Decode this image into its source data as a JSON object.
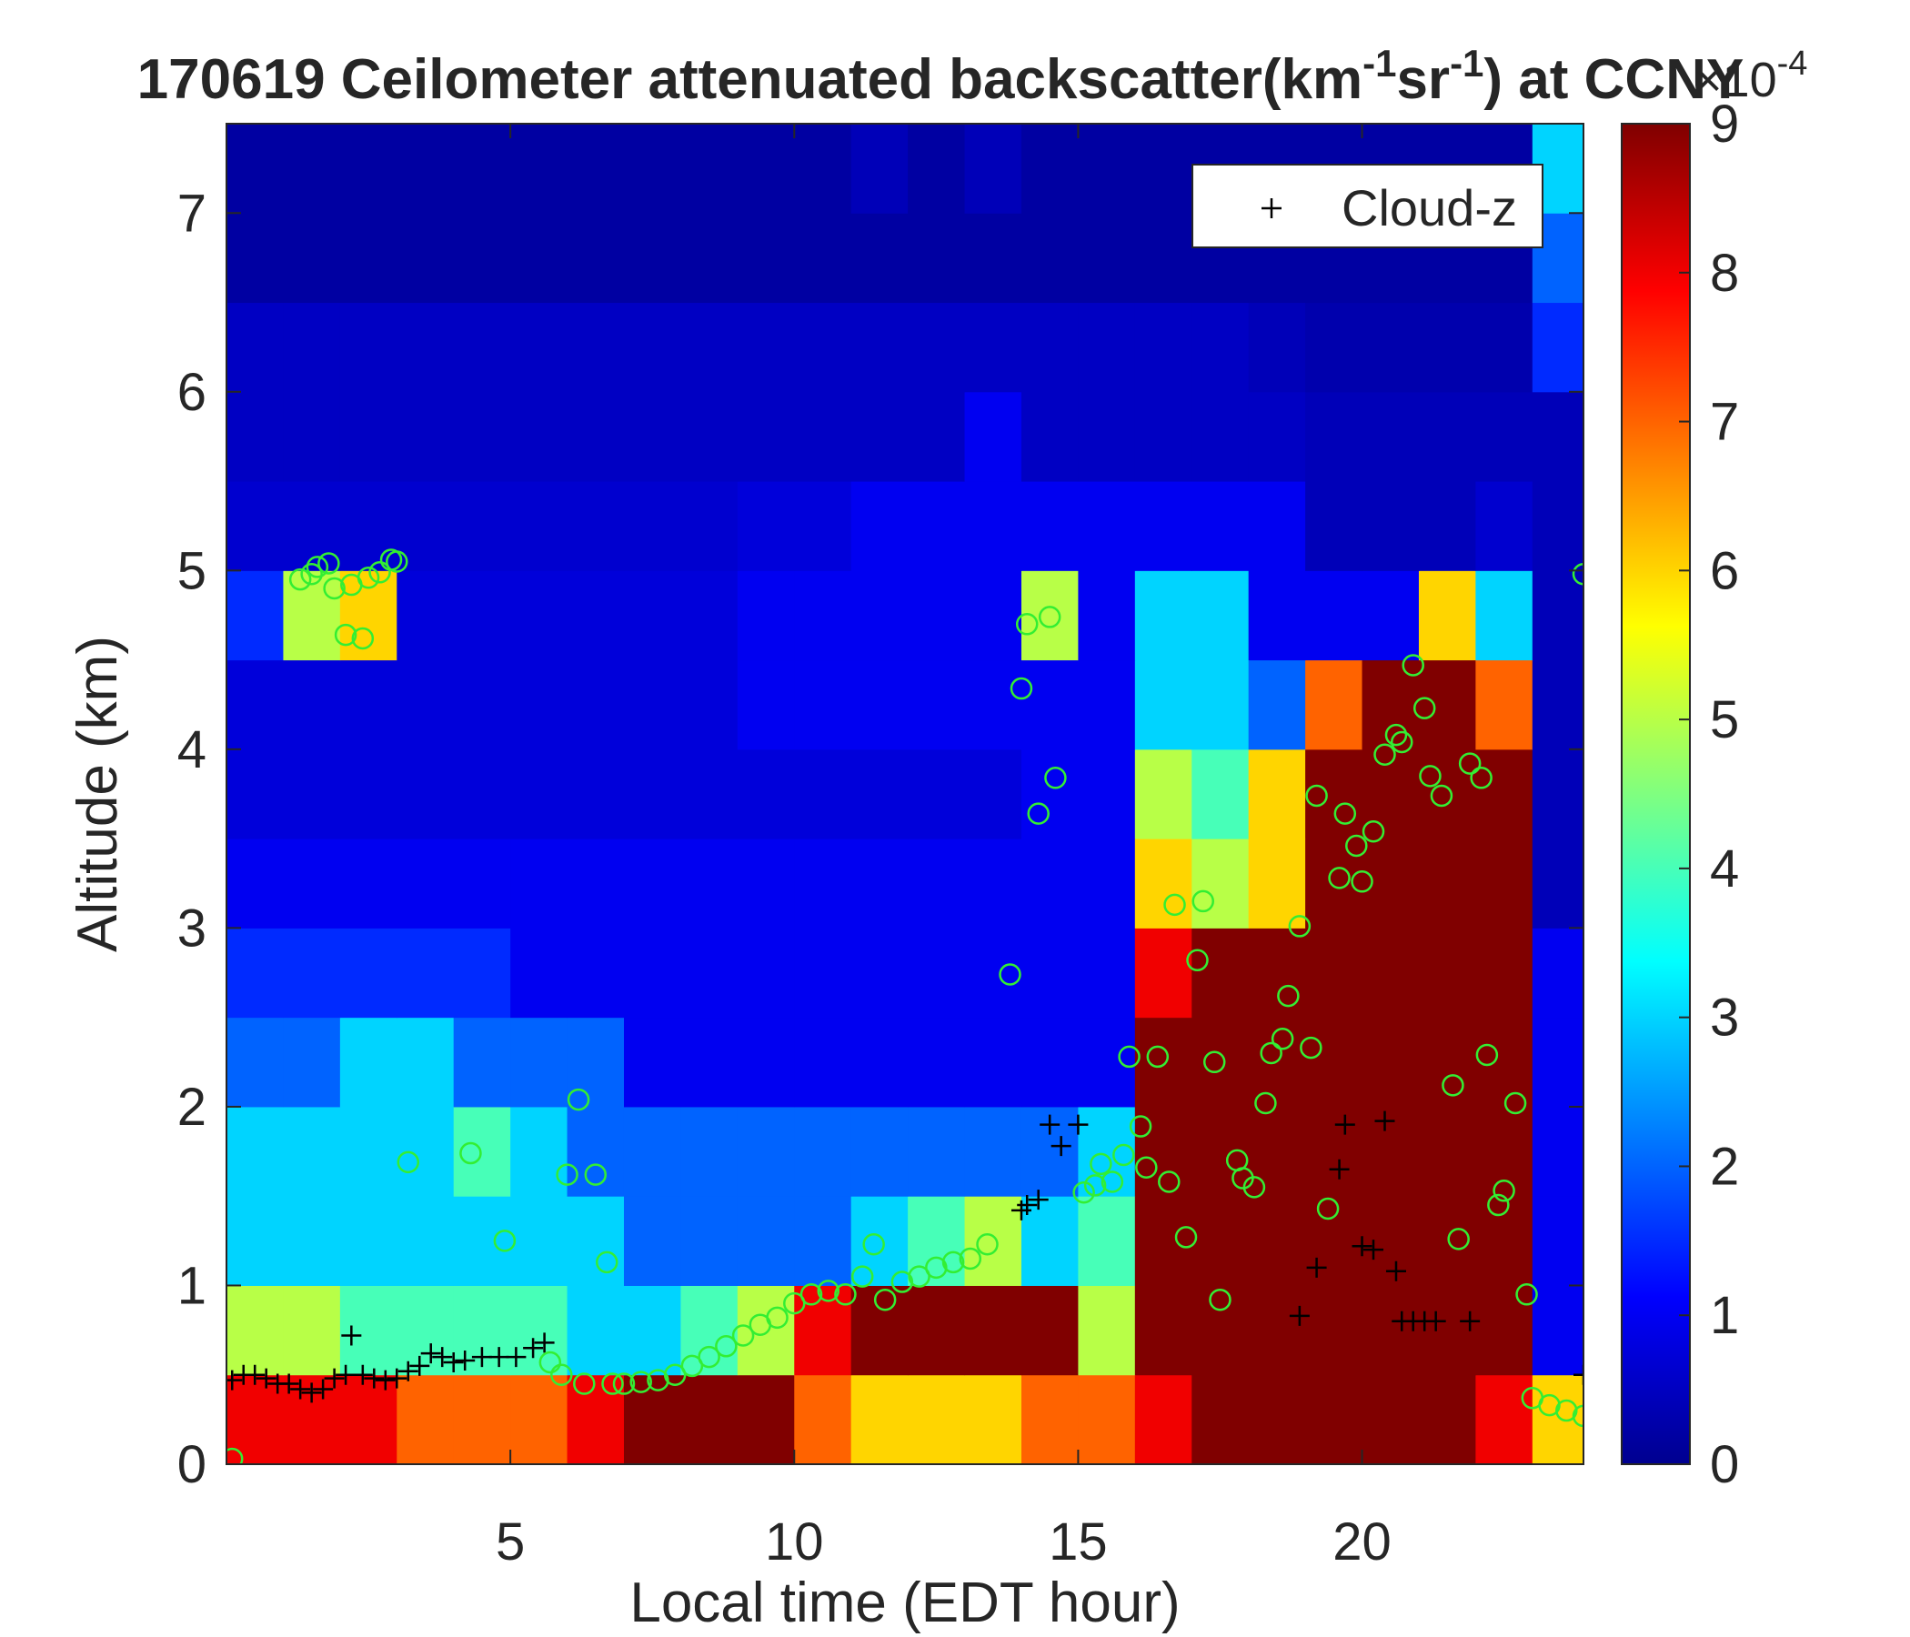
{
  "chart_data": {
    "type": "heatmap",
    "title": [
      "170619 Ceilometer attenuated backscatter(km",
      "-1",
      "sr",
      "-1",
      ") at CCNY"
    ],
    "xlabel": "Local time (EDT hour)",
    "ylabel": "Altitude (km)",
    "xlim": [
      0,
      23.9
    ],
    "ylim": [
      0,
      7.5
    ],
    "xticks": [
      5,
      10,
      15,
      20
    ],
    "yticks": [
      0,
      1,
      2,
      3,
      4,
      5,
      6,
      7
    ],
    "colormap": "jet",
    "clim": [
      0,
      9
    ],
    "cticks": [
      0,
      1,
      2,
      3,
      4,
      5,
      6,
      7,
      8,
      9
    ],
    "color_exponent": [
      "×10",
      "-4"
    ],
    "legend": "upper right",
    "xbins": [
      0,
      1,
      2,
      3,
      4,
      5,
      6,
      7,
      8,
      9,
      10,
      11,
      12,
      13,
      14,
      15,
      16,
      17,
      18,
      19,
      20,
      21,
      22,
      23,
      23.9
    ],
    "ybins": [
      0,
      0.5,
      1,
      1.5,
      2,
      2.5,
      3,
      3.5,
      4,
      4.5,
      5,
      5.5,
      6,
      6.5,
      7,
      7.5
    ],
    "z": [
      [
        8,
        8,
        8,
        7,
        7,
        7,
        8,
        9,
        9,
        9,
        7,
        6,
        6,
        6,
        7,
        7,
        8,
        9,
        9,
        9,
        9,
        9,
        8,
        6
      ],
      [
        5,
        5,
        4,
        4,
        4,
        4,
        3,
        3,
        4,
        5,
        8,
        9,
        9,
        9,
        9,
        5,
        9,
        9,
        9,
        9,
        9,
        9,
        9,
        1
      ],
      [
        3,
        3,
        3,
        3,
        3,
        3,
        3,
        2,
        2,
        2,
        2,
        3,
        4,
        5,
        3,
        4,
        9,
        9,
        9,
        9,
        9,
        9,
        9,
        1
      ],
      [
        3,
        3,
        3,
        3,
        4,
        3,
        2,
        2,
        2,
        2,
        2,
        2,
        2,
        2,
        2,
        3,
        9,
        9,
        9,
        9,
        9,
        9,
        9,
        1
      ],
      [
        2,
        2,
        3,
        3,
        2,
        2,
        2,
        1,
        1,
        1,
        1,
        1,
        1,
        1,
        1,
        1,
        9,
        9,
        9,
        9,
        9,
        9,
        9,
        1
      ],
      [
        1.5,
        1.5,
        1.5,
        1.5,
        1.5,
        1,
        1,
        1,
        1,
        1,
        1,
        1,
        1,
        1,
        1,
        1,
        8,
        9,
        9,
        9,
        9,
        9,
        9,
        1
      ],
      [
        1,
        1,
        1,
        1,
        1,
        1,
        1,
        1,
        1,
        1,
        1,
        1,
        1,
        1,
        1,
        1,
        6,
        5,
        6,
        9,
        9,
        9,
        9,
        0.5
      ],
      [
        0.8,
        0.8,
        0.8,
        0.8,
        0.8,
        0.8,
        0.8,
        0.8,
        0.8,
        0.8,
        0.8,
        0.8,
        0.8,
        0.8,
        1,
        1,
        5,
        4,
        6,
        9,
        9,
        9,
        9,
        0.5
      ],
      [
        0.8,
        0.8,
        0.8,
        0.8,
        0.8,
        0.8,
        0.8,
        0.8,
        0.8,
        1,
        1,
        1,
        1,
        1,
        1,
        1,
        3,
        3,
        2,
        7,
        9,
        9,
        7,
        0.5
      ],
      [
        1.5,
        5,
        6,
        0.8,
        0.8,
        0.8,
        0.8,
        0.8,
        0.8,
        1,
        1,
        1,
        1,
        1,
        5,
        1,
        3,
        3,
        1,
        1,
        1,
        6,
        3,
        0.5
      ],
      [
        0.7,
        0.7,
        0.7,
        0.7,
        0.7,
        0.7,
        0.7,
        0.7,
        0.7,
        0.8,
        0.8,
        1,
        1,
        1,
        1,
        1,
        1,
        1,
        1,
        0.5,
        0.5,
        0.5,
        0.7,
        0.5
      ],
      [
        0.6,
        0.6,
        0.6,
        0.6,
        0.6,
        0.6,
        0.6,
        0.6,
        0.6,
        0.6,
        0.6,
        0.6,
        0.6,
        1,
        0.6,
        0.6,
        0.6,
        0.6,
        0.6,
        0.5,
        0.5,
        0.5,
        0.5,
        0.5
      ],
      [
        0.6,
        0.6,
        0.6,
        0.6,
        0.6,
        0.6,
        0.6,
        0.6,
        0.6,
        0.6,
        0.6,
        0.6,
        0.6,
        0.6,
        0.6,
        0.6,
        0.6,
        0.6,
        0.5,
        0.4,
        0.4,
        0.4,
        0.4,
        1.5
      ],
      [
        0.3,
        0.3,
        0.3,
        0.3,
        0.3,
        0.3,
        0.3,
        0.3,
        0.3,
        0.3,
        0.3,
        0.3,
        0.3,
        0.3,
        0.3,
        0.3,
        0.3,
        0.3,
        0.3,
        0.3,
        0.3,
        0.3,
        0.3,
        2
      ],
      [
        0.3,
        0.3,
        0.3,
        0.3,
        0.3,
        0.3,
        0.3,
        0.3,
        0.3,
        0.3,
        0.3,
        0.5,
        0.3,
        0.5,
        0.3,
        0.3,
        0.3,
        0.3,
        0.3,
        0.3,
        0.3,
        0.3,
        0.3,
        3
      ]
    ],
    "series": [
      {
        "name": "Cloud-z",
        "marker": "+",
        "color": "#000000",
        "x": [
          0.1,
          0.3,
          0.5,
          0.7,
          0.9,
          1.1,
          1.3,
          1.5,
          1.7,
          1.9,
          2.1,
          2.2,
          2.4,
          2.6,
          2.8,
          3.0,
          3.2,
          3.4,
          3.6,
          3.8,
          4.0,
          4.2,
          4.5,
          4.8,
          5.1,
          5.4,
          5.6,
          14.0,
          14.1,
          14.3,
          14.5,
          14.7,
          15.0,
          18.9,
          19.2,
          19.6,
          19.7,
          20.0,
          20.2,
          20.4,
          20.6,
          20.7,
          20.9,
          21.1,
          21.3,
          21.9,
          23.9
        ],
        "y": [
          0.47,
          0.5,
          0.5,
          0.48,
          0.45,
          0.45,
          0.42,
          0.4,
          0.42,
          0.48,
          0.5,
          0.72,
          0.5,
          0.48,
          0.47,
          0.48,
          0.52,
          0.55,
          0.62,
          0.6,
          0.57,
          0.58,
          0.6,
          0.6,
          0.6,
          0.65,
          0.68,
          1.42,
          1.45,
          1.48,
          1.9,
          1.78,
          1.9,
          0.83,
          1.1,
          1.65,
          1.9,
          1.22,
          1.2,
          1.92,
          1.08,
          0.8,
          0.8,
          0.8,
          0.8,
          0.8,
          0.5
        ]
      },
      {
        "marker": "o",
        "color": "#33ee33",
        "x": [
          0.1,
          1.3,
          1.5,
          1.6,
          1.8,
          1.9,
          2.1,
          2.2,
          2.4,
          2.5,
          2.7,
          2.9,
          3.0,
          3.2,
          4.3,
          4.9,
          5.7,
          5.9,
          6.0,
          6.2,
          6.3,
          6.5,
          6.7,
          6.8,
          7.0,
          7.3,
          7.6,
          7.9,
          8.2,
          8.5,
          8.8,
          9.1,
          9.4,
          9.7,
          10.0,
          10.3,
          10.6,
          10.9,
          11.2,
          11.4,
          11.6,
          11.9,
          12.2,
          12.5,
          12.8,
          13.1,
          13.4,
          13.8,
          14.0,
          14.1,
          14.3,
          14.5,
          14.6,
          15.1,
          15.3,
          15.4,
          15.6,
          15.8,
          15.9,
          16.1,
          16.2,
          16.4,
          16.6,
          16.7,
          16.9,
          17.1,
          17.2,
          17.4,
          17.5,
          17.8,
          17.9,
          18.1,
          18.3,
          18.4,
          18.6,
          18.7,
          18.9,
          19.1,
          19.2,
          19.4,
          19.6,
          19.7,
          19.9,
          20.0,
          20.2,
          20.4,
          20.6,
          20.7,
          20.9,
          21.1,
          21.2,
          21.4,
          21.6,
          21.7,
          21.9,
          22.1,
          22.2,
          22.4,
          22.5,
          22.7,
          22.9,
          23.0,
          23.3,
          23.6,
          23.9,
          23.9
        ],
        "y": [
          0.03,
          4.95,
          4.98,
          5.02,
          5.04,
          4.9,
          4.64,
          4.92,
          4.62,
          4.96,
          4.99,
          5.06,
          5.05,
          1.69,
          1.74,
          1.25,
          0.57,
          0.5,
          1.62,
          2.04,
          0.45,
          1.62,
          1.13,
          0.45,
          0.45,
          0.46,
          0.47,
          0.5,
          0.55,
          0.6,
          0.66,
          0.72,
          0.78,
          0.82,
          0.9,
          0.95,
          0.97,
          0.95,
          1.05,
          1.23,
          0.92,
          1.02,
          1.05,
          1.1,
          1.13,
          1.15,
          1.23,
          2.74,
          4.34,
          4.7,
          3.64,
          4.74,
          3.84,
          1.52,
          1.56,
          1.68,
          1.58,
          1.73,
          2.28,
          1.89,
          1.66,
          2.28,
          1.58,
          3.13,
          1.27,
          2.82,
          3.15,
          2.25,
          0.92,
          1.7,
          1.6,
          1.55,
          2.02,
          2.3,
          2.38,
          2.62,
          3.01,
          2.33,
          3.74,
          1.43,
          3.28,
          3.64,
          3.46,
          3.26,
          3.54,
          3.97,
          4.08,
          4.04,
          4.47,
          4.23,
          3.85,
          3.74,
          2.12,
          1.26,
          3.92,
          3.84,
          2.29,
          1.45,
          1.53,
          2.02,
          0.95,
          0.37,
          0.33,
          0.3,
          0.27,
          4.98
        ]
      }
    ]
  }
}
